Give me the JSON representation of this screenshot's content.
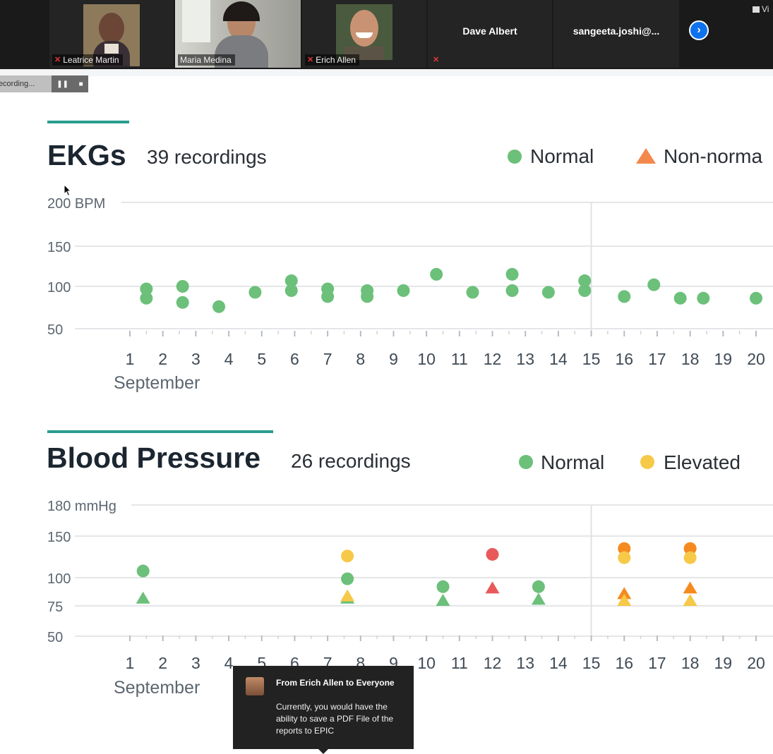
{
  "meeting": {
    "participants": [
      {
        "name": "Leatrice Martin",
        "muted": true
      },
      {
        "name": "Maria Medina",
        "muted": false,
        "active": true
      },
      {
        "name": "Erich Allen",
        "muted": true
      },
      {
        "name": "Dave Albert",
        "muted": true
      },
      {
        "name": "sangeeta.joshi@..."
      }
    ],
    "view_label": "Vi",
    "recording": {
      "label": "Recording...",
      "pause_icon": "pause-icon",
      "stop_icon": "stop-icon"
    }
  },
  "ekg": {
    "title": "EKGs",
    "count": "39 recordings",
    "legend": [
      {
        "label": "Normal",
        "shape": "circle",
        "color": "#6cc07a"
      },
      {
        "label": "Non-norma",
        "shape": "triangle",
        "color": "#f2884b"
      }
    ],
    "accent_color": "#2a9d8f"
  },
  "bp": {
    "title": "Blood Pressure",
    "count": "26 recordings",
    "legend": [
      {
        "label": "Normal",
        "shape": "circle",
        "color": "#6cc07a"
      },
      {
        "label": "Elevated",
        "shape": "circle",
        "color": "#f7c948"
      }
    ],
    "accent_color": "#2a9d8f"
  },
  "chart_data": [
    {
      "type": "scatter",
      "title": "EKGs",
      "ylabel": "BPM",
      "y_ticks": [
        "200 BPM",
        "150",
        "100",
        "50"
      ],
      "y_tick_values": [
        200,
        150,
        100,
        50
      ],
      "ylim": [
        50,
        200
      ],
      "x_ticks": [
        "1",
        "2",
        "3",
        "4",
        "5",
        "6",
        "7",
        "8",
        "9",
        "10",
        "11",
        "12",
        "13",
        "14",
        "15",
        "16",
        "17",
        "18",
        "19",
        "20"
      ],
      "x_label": "September",
      "xlim": [
        1,
        20
      ],
      "reference_x": 15,
      "series": [
        {
          "name": "Normal",
          "color": "#6cc07a",
          "shape": "circle",
          "x": [
            1.5,
            1.5,
            2.6,
            2.6,
            3.7,
            4.8,
            5.9,
            5.9,
            7.0,
            7.0,
            8.2,
            8.2,
            9.3,
            10.3,
            11.4,
            12.6,
            12.6,
            13.7,
            14.8,
            14.8,
            16.0,
            16.9,
            17.7,
            18.4,
            20.0
          ],
          "y": [
            97,
            86,
            100,
            81,
            76,
            93,
            107,
            95,
            97,
            88,
            95,
            88,
            95,
            115,
            93,
            115,
            95,
            93,
            107,
            95,
            88,
            102,
            86,
            86,
            86
          ]
        }
      ]
    },
    {
      "type": "scatter",
      "title": "Blood Pressure",
      "ylabel": "mmHg",
      "y_ticks": [
        "180 mmHg",
        "150",
        "100",
        "75",
        "50"
      ],
      "y_tick_values": [
        180,
        150,
        100,
        75,
        50
      ],
      "ylim": [
        50,
        180
      ],
      "x_ticks": [
        "1",
        "2",
        "3",
        "4",
        "5",
        "6",
        "7",
        "8",
        "9",
        "10",
        "11",
        "12",
        "13",
        "14",
        "15",
        "16",
        "17",
        "18",
        "19",
        "20"
      ],
      "x_label": "September",
      "xlim": [
        1,
        20
      ],
      "reference_x": 15,
      "points": [
        {
          "x": 1.4,
          "y": 108,
          "shape": "circle",
          "color": "#6cc07a"
        },
        {
          "x": 1.4,
          "y": 82,
          "shape": "triangle",
          "color": "#6cc07a"
        },
        {
          "x": 7.6,
          "y": 126,
          "shape": "circle",
          "color": "#f7c948"
        },
        {
          "x": 7.6,
          "y": 99,
          "shape": "circle",
          "color": "#6cc07a"
        },
        {
          "x": 7.6,
          "y": 82,
          "shape": "triangle",
          "color": "#6cc07a"
        },
        {
          "x": 7.6,
          "y": 84,
          "shape": "triangle",
          "color": "#f7c948"
        },
        {
          "x": 10.5,
          "y": 92,
          "shape": "circle",
          "color": "#6cc07a"
        },
        {
          "x": 10.5,
          "y": 80,
          "shape": "triangle",
          "color": "#6cc07a"
        },
        {
          "x": 12.0,
          "y": 128,
          "shape": "circle",
          "color": "#e85a5a"
        },
        {
          "x": 12.0,
          "y": 91,
          "shape": "triangle",
          "color": "#e85a5a"
        },
        {
          "x": 13.4,
          "y": 92,
          "shape": "circle",
          "color": "#6cc07a"
        },
        {
          "x": 13.4,
          "y": 81,
          "shape": "triangle",
          "color": "#6cc07a"
        },
        {
          "x": 16.0,
          "y": 135,
          "shape": "circle",
          "color": "#f58a1f"
        },
        {
          "x": 16.0,
          "y": 124,
          "shape": "circle",
          "color": "#f7c948"
        },
        {
          "x": 16.0,
          "y": 86,
          "shape": "triangle",
          "color": "#f58a1f"
        },
        {
          "x": 16.0,
          "y": 80,
          "shape": "triangle",
          "color": "#f7c948"
        },
        {
          "x": 18.0,
          "y": 135,
          "shape": "circle",
          "color": "#f58a1f"
        },
        {
          "x": 18.0,
          "y": 124,
          "shape": "circle",
          "color": "#f7c948"
        },
        {
          "x": 18.0,
          "y": 91,
          "shape": "triangle",
          "color": "#f58a1f"
        },
        {
          "x": 18.0,
          "y": 80,
          "shape": "triangle",
          "color": "#f7c948"
        }
      ]
    }
  ],
  "chat": {
    "from": "From Erich Allen to Everyone",
    "message": "Currently, you would have the ability to save a PDF File of the reports to EPIC"
  }
}
